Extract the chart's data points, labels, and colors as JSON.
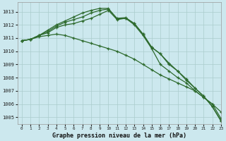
{
  "title": "Graphe pression niveau de la mer (hPa)",
  "bg_color": "#cce8ee",
  "grid_color": "#aacccc",
  "line_color": "#2d6a2d",
  "xlim": [
    -0.5,
    23
  ],
  "ylim": [
    1004.5,
    1013.7
  ],
  "yticks": [
    1005,
    1006,
    1007,
    1008,
    1009,
    1010,
    1011,
    1012,
    1013
  ],
  "xticks": [
    0,
    1,
    2,
    3,
    4,
    5,
    6,
    7,
    8,
    9,
    10,
    11,
    12,
    13,
    14,
    15,
    16,
    17,
    18,
    19,
    20,
    21,
    22,
    23
  ],
  "series": [
    [
      1010.8,
      1010.9,
      1011.1,
      1011.2,
      1011.3,
      1011.2,
      1011.0,
      1010.8,
      1010.6,
      1010.4,
      1010.2,
      1010.0,
      1009.7,
      1009.4,
      1009.0,
      1008.6,
      1008.2,
      1007.9,
      1007.6,
      1007.3,
      1007.0,
      1006.5,
      1006.0,
      1005.4
    ],
    [
      1010.8,
      1010.9,
      1011.2,
      1011.4,
      1011.8,
      1012.0,
      1012.1,
      1012.3,
      1012.5,
      1012.8,
      1013.1,
      1012.4,
      1012.5,
      1012.0,
      1011.2,
      1010.2,
      1009.0,
      1008.5,
      1008.0,
      1007.6,
      1007.0,
      1006.5,
      1006.0,
      1004.9
    ],
    [
      1010.8,
      1010.9,
      1011.2,
      1011.5,
      1011.9,
      1012.2,
      1012.4,
      1012.6,
      1012.9,
      1013.1,
      1013.2,
      1012.5,
      1012.55,
      1012.1,
      1011.3,
      1010.3,
      1009.8,
      1009.1,
      1008.5,
      1007.9,
      1007.2,
      1006.6,
      1005.8,
      1004.75
    ],
    [
      1010.8,
      1010.9,
      1011.2,
      1011.6,
      1012.0,
      1012.3,
      1012.6,
      1012.9,
      1013.1,
      1013.25,
      1013.25,
      1012.45,
      1012.5,
      1012.1,
      1011.3,
      1010.3,
      1009.8,
      1009.0,
      1008.5,
      1007.8,
      1007.2,
      1006.6,
      1005.8,
      1004.7
    ]
  ]
}
